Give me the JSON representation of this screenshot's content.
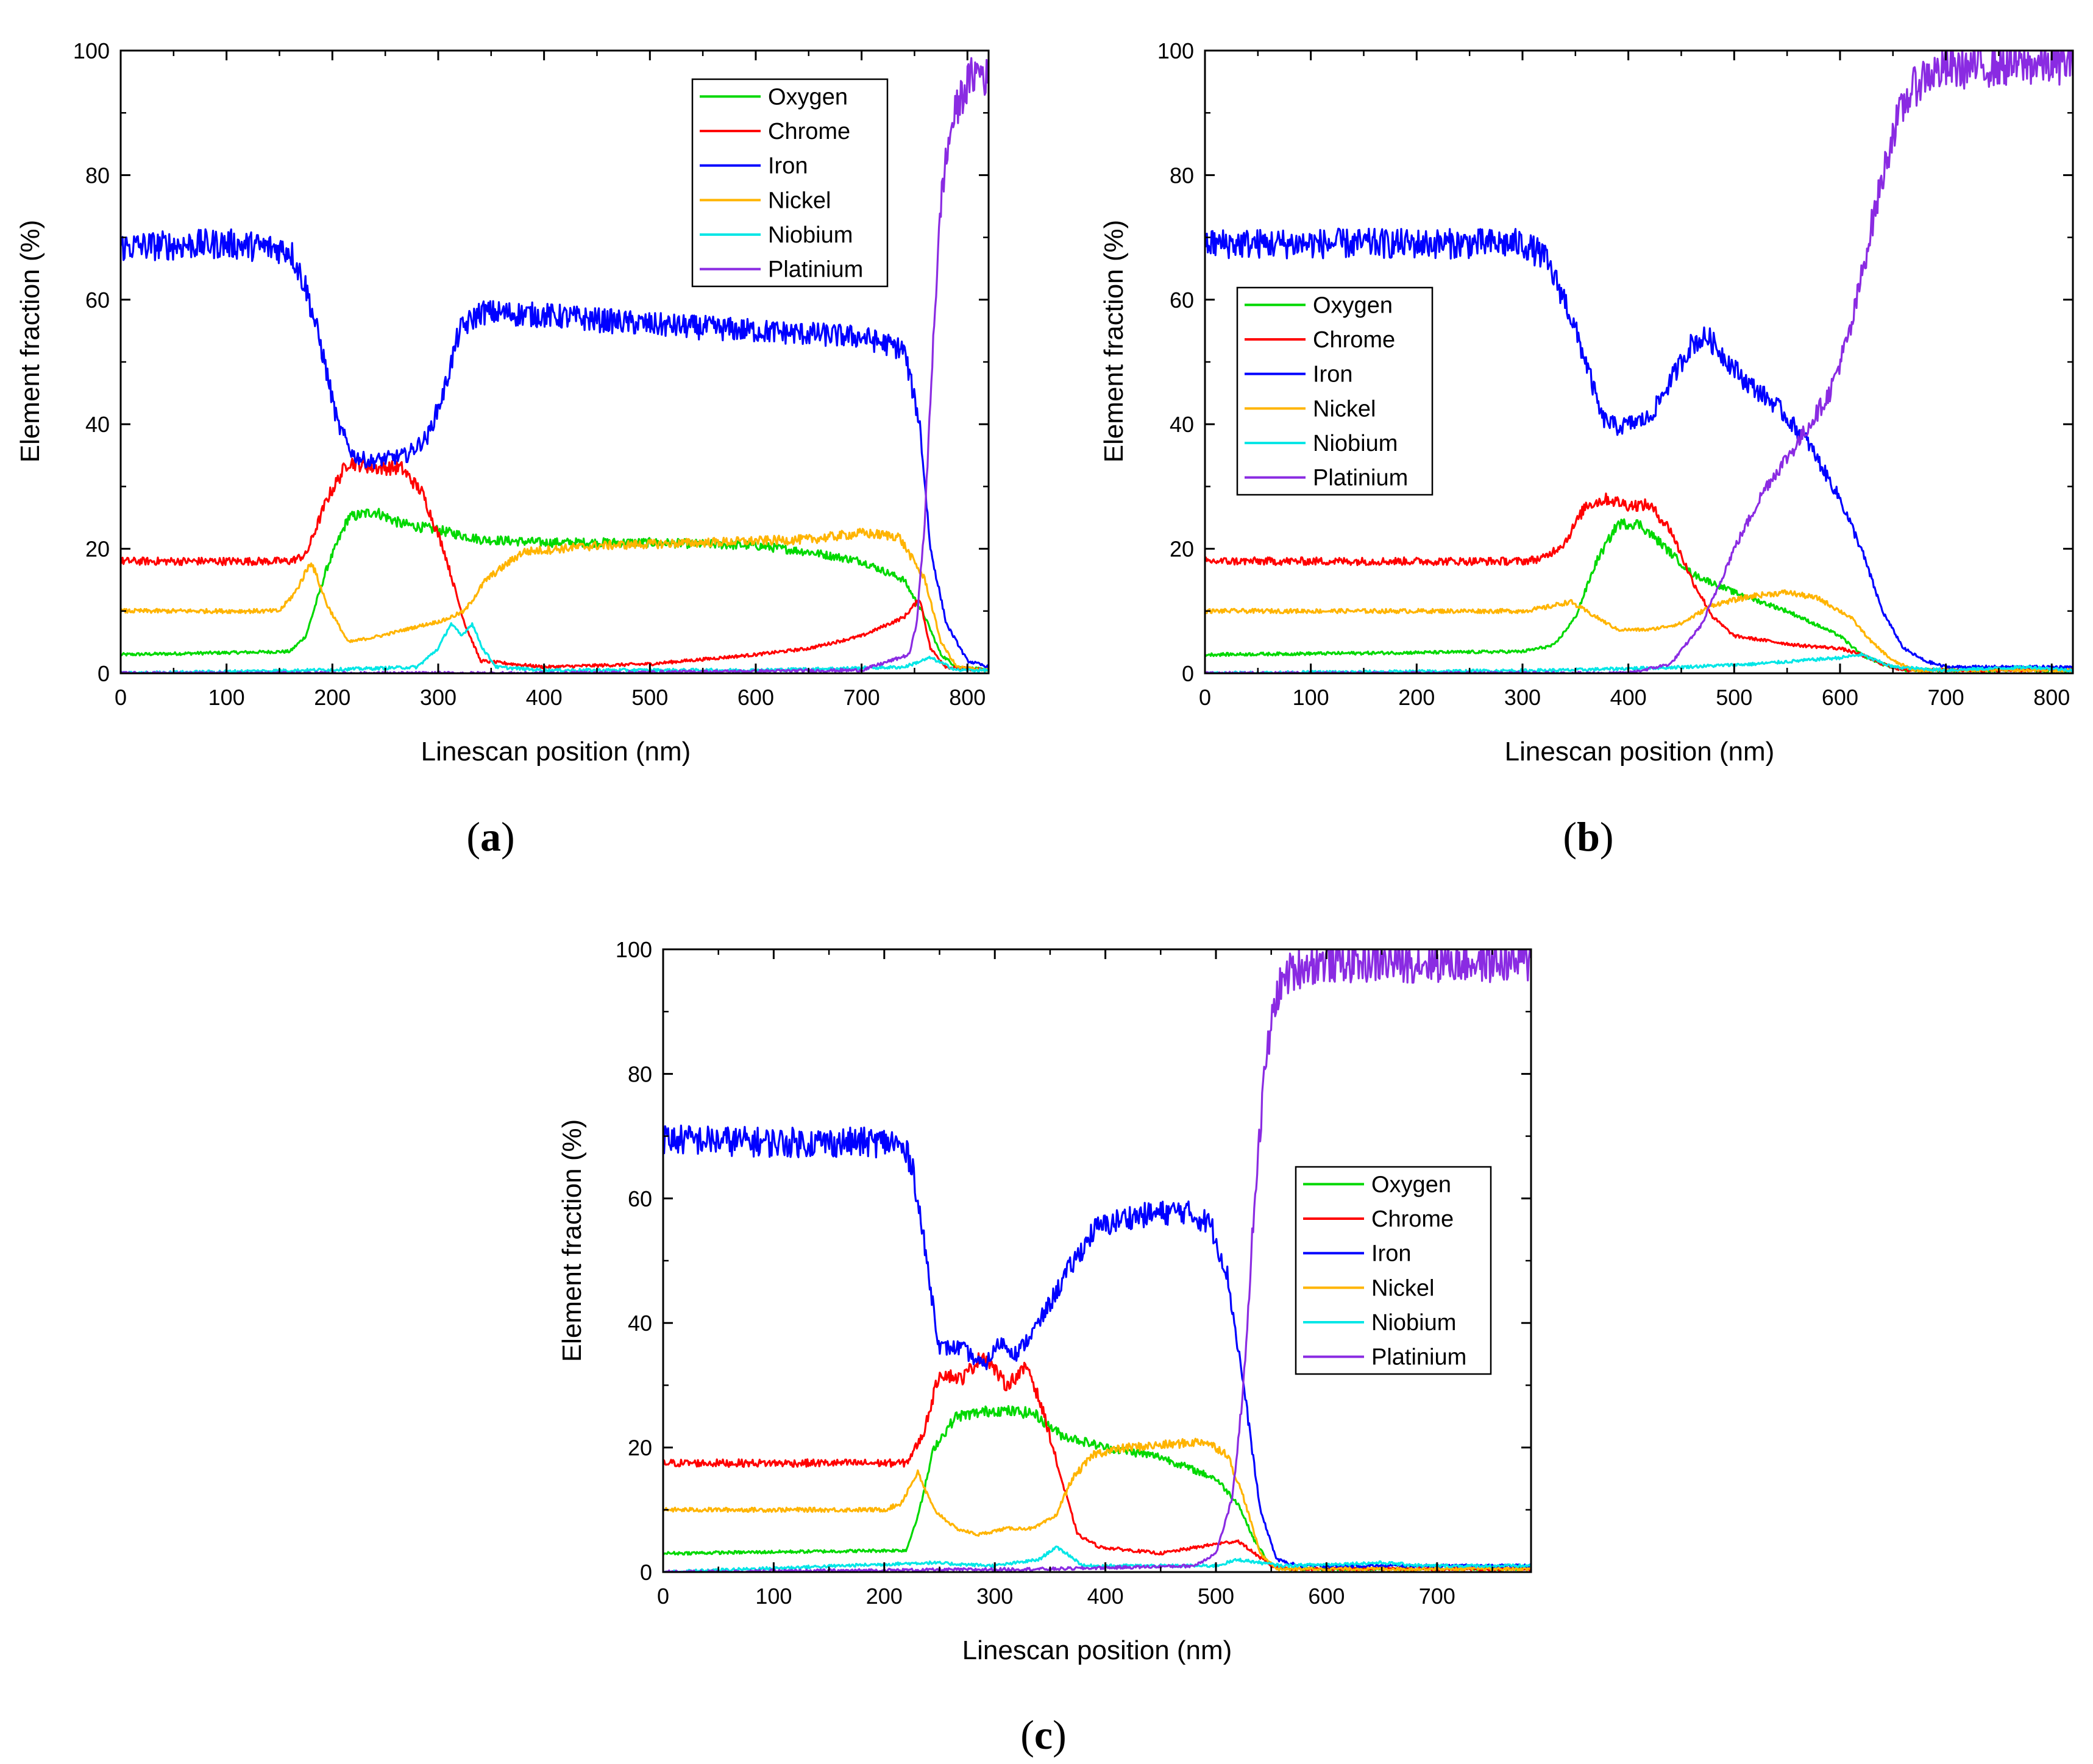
{
  "figure": {
    "panels": [
      {
        "caption_open": "(",
        "caption_letter": "a",
        "caption_close": ")"
      },
      {
        "caption_open": "(",
        "caption_letter": "b",
        "caption_close": ")"
      },
      {
        "caption_open": "(",
        "caption_letter": "c",
        "caption_close": ")"
      }
    ]
  },
  "chart_data": [
    {
      "type": "line",
      "panel": "a",
      "xlabel": "Linescan position (nm)",
      "ylabel": "Element fraction (%)",
      "xlim": [
        0,
        820
      ],
      "ylim": [
        0,
        100
      ],
      "xticks": [
        0,
        100,
        200,
        300,
        400,
        500,
        600,
        700,
        800
      ],
      "yticks": [
        0,
        20,
        40,
        60,
        80,
        100
      ],
      "legend_position": "top-right",
      "series": [
        {
          "name": "Oxygen",
          "color": "#00d800",
          "x": [
            0,
            160,
            175,
            195,
            215,
            240,
            265,
            300,
            340,
            400,
            500,
            600,
            650,
            700,
            740,
            760,
            775,
            790,
            820
          ],
          "values": [
            3,
            3.5,
            6,
            17,
            25,
            26,
            24,
            23,
            21.5,
            21,
            21,
            20.5,
            19.5,
            18,
            15,
            9,
            3,
            1,
            0.5
          ]
        },
        {
          "name": "Chrome",
          "color": "#ff0000",
          "x": [
            0,
            160,
            175,
            195,
            215,
            240,
            265,
            285,
            305,
            325,
            340,
            400,
            500,
            600,
            650,
            700,
            740,
            755,
            765,
            780,
            820
          ],
          "values": [
            18,
            18,
            19,
            28,
            34,
            33,
            33,
            29,
            20,
            8,
            2,
            1,
            1.5,
            3,
            4,
            6,
            9,
            12,
            4,
            1,
            0.5
          ]
        },
        {
          "name": "Iron",
          "color": "#0000ff",
          "x": [
            0,
            100,
            160,
            175,
            190,
            205,
            220,
            235,
            270,
            290,
            305,
            320,
            340,
            400,
            500,
            600,
            700,
            740,
            755,
            765,
            780,
            800,
            820
          ],
          "values": [
            68.5,
            69,
            68,
            62,
            52,
            40,
            35,
            34,
            35,
            38,
            45,
            55,
            58,
            57.5,
            56,
            55,
            54,
            52,
            40,
            20,
            8,
            2,
            1
          ]
        },
        {
          "name": "Nickel",
          "color": "#ffb400",
          "x": [
            0,
            150,
            165,
            180,
            195,
            215,
            245,
            280,
            305,
            325,
            345,
            380,
            450,
            550,
            650,
            700,
            735,
            760,
            775,
            790,
            820
          ],
          "values": [
            10,
            10,
            13,
            18,
            11,
            5,
            6,
            7.5,
            8.5,
            10,
            15,
            19.5,
            20.5,
            21,
            21.5,
            22.5,
            22,
            15,
            5,
            1,
            0.5
          ]
        },
        {
          "name": "Niobium",
          "color": "#00e6e6",
          "x": [
            0,
            180,
            280,
            300,
            312,
            322,
            332,
            342,
            355,
            400,
            600,
            740,
            765,
            790,
            820
          ],
          "values": [
            0,
            0.5,
            1,
            4,
            8,
            6,
            8,
            4,
            1,
            0.5,
            0.5,
            1,
            2.5,
            0.5,
            0.5
          ]
        },
        {
          "name": "Platinium",
          "color": "#8a2be2",
          "x": [
            0,
            400,
            700,
            745,
            752,
            760,
            768,
            776,
            785,
            795,
            805,
            812,
            820
          ],
          "values": [
            0,
            0,
            0.5,
            3,
            8,
            25,
            55,
            78,
            88,
            93,
            96,
            97,
            95
          ]
        }
      ]
    },
    {
      "type": "line",
      "panel": "b",
      "xlabel": "Linescan position (nm)",
      "ylabel": "Element fraction (%)",
      "xlim": [
        0,
        820
      ],
      "ylim": [
        0,
        100
      ],
      "xticks": [
        0,
        100,
        200,
        300,
        400,
        500,
        600,
        700,
        800
      ],
      "yticks": [
        0,
        20,
        40,
        60,
        80,
        100
      ],
      "legend_position": "top-left",
      "series": [
        {
          "name": "Oxygen",
          "color": "#00d800",
          "x": [
            0,
            300,
            330,
            350,
            370,
            390,
            410,
            430,
            460,
            500,
            550,
            600,
            620,
            640,
            660,
            700,
            820
          ],
          "values": [
            3,
            3.5,
            4.5,
            9,
            18,
            24,
            24,
            21,
            16,
            13,
            10,
            6,
            3,
            1.5,
            0.5,
            0.5,
            0.5
          ]
        },
        {
          "name": "Chrome",
          "color": "#ff0000",
          "x": [
            0,
            300,
            320,
            340,
            360,
            380,
            400,
            420,
            440,
            460,
            480,
            500,
            560,
            600,
            620,
            640,
            660,
            700,
            820
          ],
          "values": [
            18,
            18,
            18.5,
            21,
            27,
            28,
            27,
            27,
            23,
            15,
            9,
            6,
            4.5,
            4,
            3,
            1.5,
            0.5,
            0.5,
            0.5
          ]
        },
        {
          "name": "Iron",
          "color": "#0000ff",
          "x": [
            0,
            100,
            200,
            300,
            320,
            340,
            360,
            375,
            390,
            420,
            440,
            460,
            475,
            490,
            510,
            540,
            570,
            600,
            620,
            640,
            660,
            680,
            700,
            820
          ],
          "values": [
            69,
            69,
            69,
            69,
            67,
            60,
            50,
            41,
            39.5,
            41,
            47,
            53,
            54,
            51,
            47,
            43,
            37,
            28,
            20,
            10,
            4,
            2,
            1,
            1
          ]
        },
        {
          "name": "Nickel",
          "color": "#ffb400",
          "x": [
            0,
            200,
            300,
            320,
            345,
            370,
            390,
            420,
            450,
            480,
            520,
            550,
            580,
            610,
            630,
            650,
            670,
            820
          ],
          "values": [
            10,
            10,
            10,
            10.5,
            11.5,
            9,
            7,
            7,
            8,
            11,
            12.5,
            13,
            12,
            9,
            5,
            2,
            0.5,
            0.5
          ]
        },
        {
          "name": "Niobium",
          "color": "#00e6e6",
          "x": [
            0,
            340,
            450,
            520,
            560,
            600,
            620,
            650,
            700,
            780,
            820
          ],
          "values": [
            0,
            0.5,
            1,
            1.5,
            2,
            2.5,
            3,
            1,
            0.5,
            1,
            0.5
          ]
        },
        {
          "name": "Platinium",
          "color": "#8a2be2",
          "x": [
            0,
            400,
            440,
            470,
            500,
            530,
            560,
            590,
            610,
            630,
            650,
            665,
            680,
            700,
            740,
            820
          ],
          "values": [
            0,
            0,
            1.5,
            8,
            20,
            30,
            37,
            45,
            55,
            72,
            87,
            93,
            96,
            97,
            97.5,
            98
          ]
        }
      ]
    },
    {
      "type": "line",
      "panel": "c",
      "xlabel": "Linescan position (nm)",
      "ylabel": "Element fraction (%)",
      "xlim": [
        0,
        785
      ],
      "ylim": [
        0,
        100
      ],
      "xticks": [
        0,
        100,
        200,
        300,
        400,
        500,
        600,
        700
      ],
      "yticks": [
        0,
        20,
        40,
        60,
        80,
        100
      ],
      "legend_position": "right",
      "series": [
        {
          "name": "Oxygen",
          "color": "#00d800",
          "x": [
            0,
            220,
            232,
            245,
            265,
            300,
            335,
            360,
            400,
            450,
            500,
            520,
            535,
            550,
            570,
            600,
            785
          ],
          "values": [
            3,
            3.5,
            10,
            20,
            25,
            26,
            25.5,
            22,
            20,
            18.5,
            15,
            11,
            5,
            1,
            0.5,
            0.5,
            0.5
          ]
        },
        {
          "name": "Chrome",
          "color": "#ff0000",
          "x": [
            0,
            220,
            235,
            250,
            270,
            290,
            310,
            330,
            345,
            360,
            375,
            395,
            450,
            500,
            520,
            535,
            550,
            570,
            785
          ],
          "values": [
            17.5,
            17.5,
            22,
            32,
            31,
            35,
            30,
            33,
            25,
            15,
            6,
            4,
            3,
            4.5,
            5,
            3,
            1,
            0.5,
            0.5
          ]
        },
        {
          "name": "Iron",
          "color": "#0000ff",
          "x": [
            0,
            100,
            210,
            225,
            240,
            250,
            270,
            290,
            305,
            320,
            340,
            365,
            390,
            420,
            470,
            495,
            510,
            525,
            540,
            555,
            575,
            785
          ],
          "values": [
            69.5,
            69,
            69,
            66,
            48,
            36,
            36,
            33,
            37,
            35,
            40,
            48,
            55,
            57,
            58,
            56,
            48,
            30,
            10,
            2,
            1,
            1
          ]
        },
        {
          "name": "Nickel",
          "color": "#ffb400",
          "x": [
            0,
            200,
            215,
            230,
            245,
            265,
            285,
            310,
            335,
            355,
            370,
            390,
            420,
            460,
            490,
            510,
            525,
            540,
            555,
            785
          ],
          "values": [
            10,
            10,
            11,
            16,
            10,
            7,
            6,
            7,
            7,
            9,
            15,
            19,
            20,
            20.5,
            21,
            19,
            12,
            3,
            0.5,
            0.5
          ]
        },
        {
          "name": "Niobium",
          "color": "#00e6e6",
          "x": [
            0,
            240,
            300,
            340,
            355,
            365,
            380,
            500,
            520,
            560,
            650,
            690,
            785
          ],
          "values": [
            0,
            1.5,
            1,
            2,
            4,
            3,
            1,
            1,
            2,
            1,
            1.5,
            1,
            1
          ]
        },
        {
          "name": "Platinium",
          "color": "#8a2be2",
          "x": [
            0,
            350,
            480,
            500,
            515,
            525,
            535,
            545,
            555,
            565,
            580,
            600,
            700,
            785
          ],
          "values": [
            0,
            0.5,
            1,
            3,
            12,
            30,
            60,
            82,
            93,
            96,
            97.5,
            98,
            98,
            98
          ]
        }
      ]
    }
  ]
}
